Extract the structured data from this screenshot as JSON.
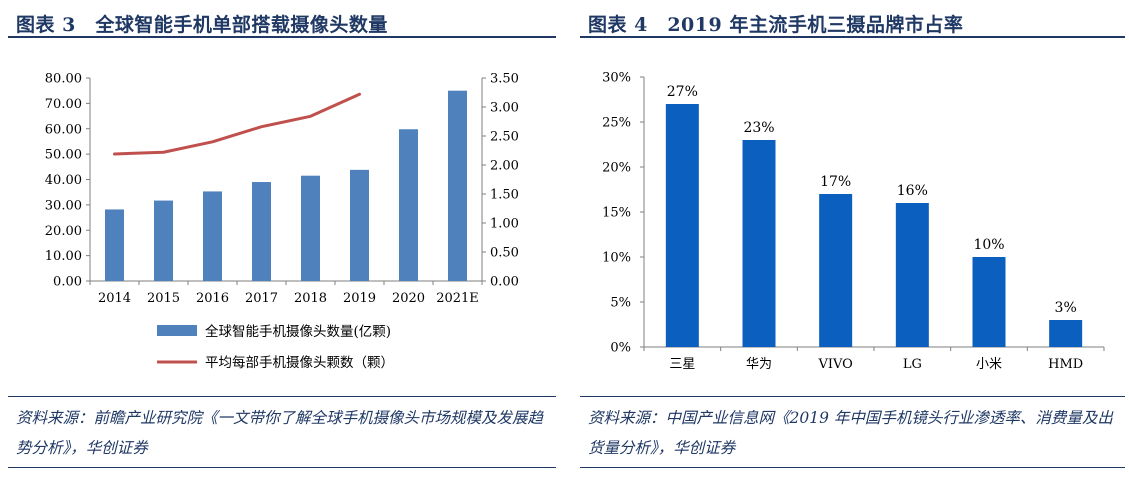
{
  "left": {
    "title": "图表 3　全球智能手机单部搭载摄像头数量",
    "source": "资料来源：前瞻产业研究院《一文带你了解全球手机摄像头市场规模及发展趋势分析》，华创证券"
  },
  "right": {
    "title": "图表 4　2019 年主流手机三摄品牌市占率",
    "source": "资料来源：中国产业信息网《2019 年中国手机镜头行业渗透率、消费量及出货量分析》，华创证券"
  },
  "chart_data": [
    {
      "type": "bar",
      "categories": [
        "2014",
        "2015",
        "2016",
        "2017",
        "2018",
        "2019",
        "2020",
        "2021E"
      ],
      "series": [
        {
          "name": "全球智能手机摄像头数量(亿颗)",
          "type": "bar",
          "axis": "left",
          "values": [
            28.2,
            31.7,
            35.3,
            39.0,
            41.5,
            43.8,
            59.8,
            75.0
          ],
          "color": "#4f81bd"
        },
        {
          "name": "平均每部手机摄像头颗数（颗）",
          "type": "line",
          "axis": "right",
          "values": [
            2.19,
            2.22,
            2.4,
            2.66,
            2.84,
            3.22,
            null,
            null
          ],
          "color": "#c0504d"
        }
      ],
      "ylim": [
        0,
        80
      ],
      "yticks": [
        "80.00",
        "70.00",
        "60.00",
        "50.00",
        "40.00",
        "30.00",
        "20.00",
        "10.00",
        "0.00"
      ],
      "y2lim": [
        0,
        3.5
      ],
      "y2ticks": [
        "3.50",
        "3.00",
        "2.50",
        "2.00",
        "1.50",
        "1.00",
        "0.50",
        "0.00"
      ],
      "legend": "bottom",
      "grid": false
    },
    {
      "type": "bar",
      "categories": [
        "三星",
        "华为",
        "VIVO",
        "LG",
        "小米",
        "HMD"
      ],
      "values": [
        27,
        23,
        17,
        16,
        10,
        3
      ],
      "data_labels": [
        "27%",
        "23%",
        "17%",
        "16%",
        "10%",
        "3%"
      ],
      "ylim": [
        0,
        30
      ],
      "yticks": [
        "30%",
        "25%",
        "20%",
        "15%",
        "10%",
        "5%",
        "0%"
      ],
      "color": "#0b5fbf",
      "grid": false
    }
  ]
}
